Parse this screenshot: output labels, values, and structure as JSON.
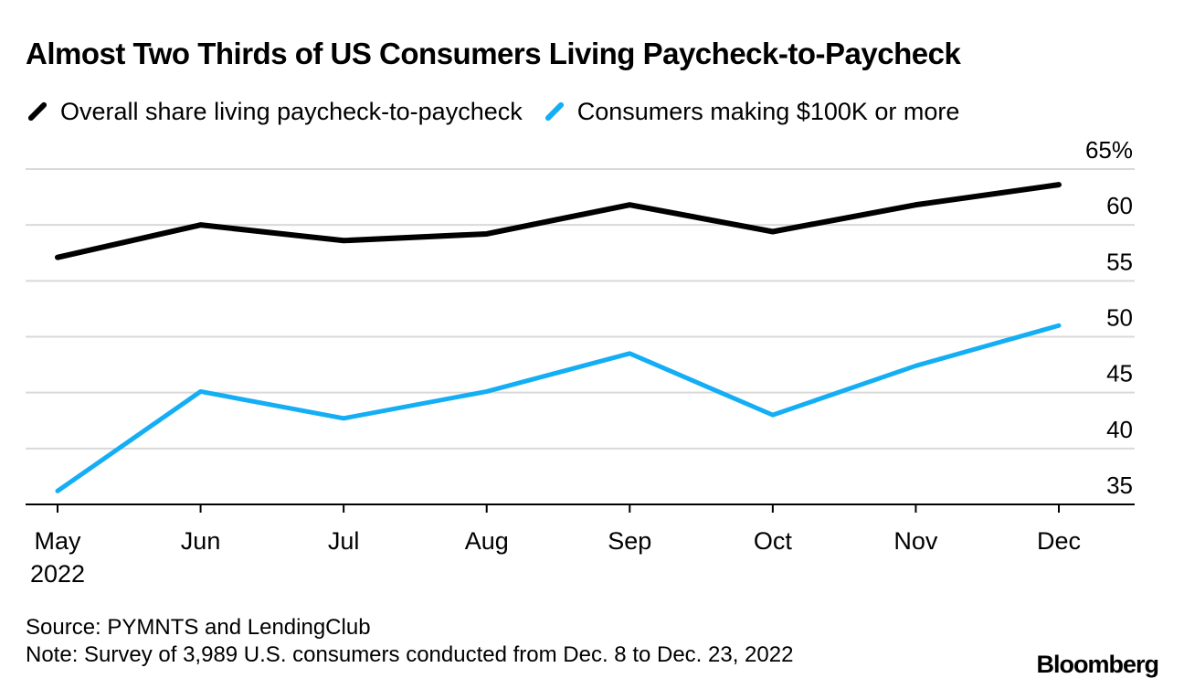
{
  "title": "Almost Two Thirds of US Consumers Living Paycheck-to-Paycheck",
  "source": "Source: PYMNTS and LendingClub",
  "note": "Note: Survey of 3,989 U.S. consumers conducted from Dec. 8 to Dec. 23, 2022",
  "brand": "Bloomberg",
  "chart_data": {
    "type": "line",
    "title": "Almost Two Thirds of US Consumers Living Paycheck-to-Paycheck",
    "xlabel": "",
    "ylabel": "",
    "categories": [
      "May",
      "Jun",
      "Jul",
      "Aug",
      "Sep",
      "Oct",
      "Nov",
      "Dec"
    ],
    "x_sublabel": "2022",
    "ylim": [
      35,
      65
    ],
    "yticks": [
      35,
      40,
      45,
      50,
      55,
      60,
      65
    ],
    "ytick_labels": [
      "35",
      "40",
      "45",
      "50",
      "55",
      "60",
      "65%"
    ],
    "grid": true,
    "legend_position": "top",
    "series": [
      {
        "name": "Overall share living paycheck-to-paycheck",
        "color": "#000000",
        "values": [
          57.1,
          60.0,
          58.6,
          59.2,
          61.8,
          59.4,
          61.8,
          63.6
        ]
      },
      {
        "name": "Consumers making $100K or more",
        "color": "#14aef5",
        "values": [
          36.2,
          45.1,
          42.7,
          45.1,
          48.5,
          43.0,
          47.4,
          51.0
        ]
      }
    ]
  }
}
